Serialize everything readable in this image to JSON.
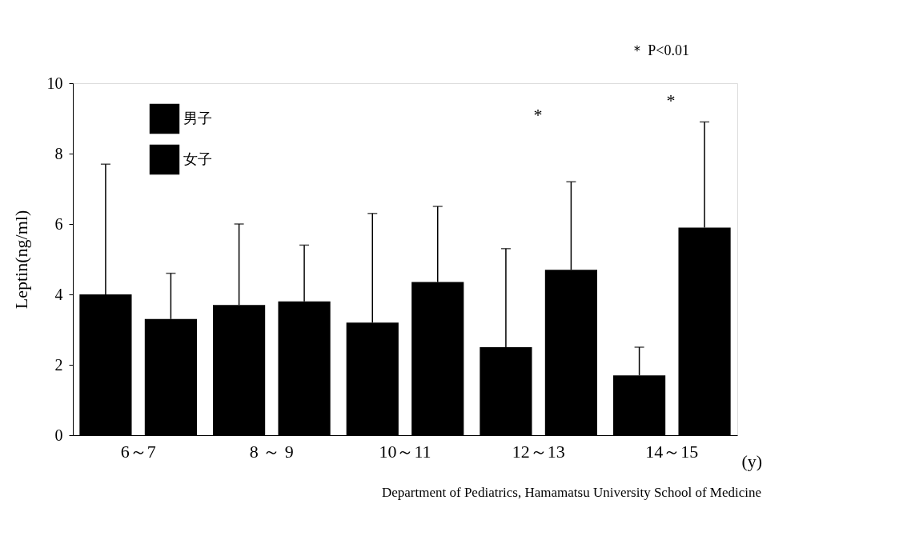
{
  "chart_data": {
    "type": "bar",
    "ylabel": "Leptin(ng/ml)",
    "xlabel": "(y)",
    "categories": [
      "6～7",
      "8 ～ 9",
      "10～11",
      "12～13",
      "14～15"
    ],
    "series": [
      {
        "name": "男子",
        "color": "#000000",
        "values": [
          4.0,
          3.7,
          3.2,
          2.5,
          1.7
        ],
        "errors": [
          [
            4.0,
            7.7
          ],
          [
            3.7,
            6.0
          ],
          [
            3.2,
            6.3
          ],
          [
            2.5,
            5.3
          ],
          [
            1.7,
            2.5
          ]
        ]
      },
      {
        "name": "女子",
        "color": "#000000",
        "values": [
          3.3,
          3.8,
          4.35,
          4.7,
          5.9
        ],
        "errors": [
          [
            3.3,
            4.6
          ],
          [
            3.8,
            5.4
          ],
          [
            4.35,
            6.5
          ],
          [
            4.7,
            7.2
          ],
          [
            5.9,
            8.9
          ]
        ]
      }
    ],
    "ylim": [
      0,
      10
    ],
    "yticks": [
      0,
      2,
      4,
      6,
      8,
      10
    ],
    "grid": false,
    "legend": "top left",
    "annotations": [
      "*",
      "*",
      "＊  P<0.01",
      "Department of Pediatrics, Hamamatsu University School of Medicine"
    ]
  }
}
